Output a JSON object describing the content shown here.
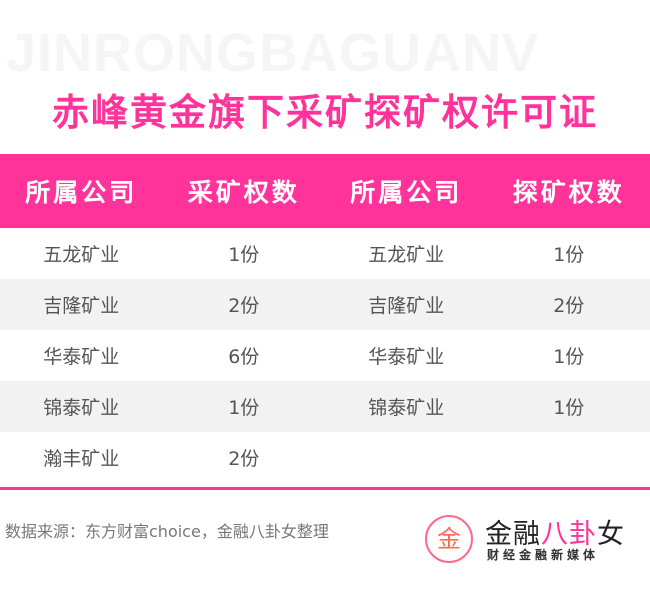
{
  "watermark": "JINRONGBAGUANV",
  "title": "赤峰黄金旗下采矿探矿权许可证",
  "table": {
    "headers": [
      "所属公司",
      "采矿权数",
      "所属公司",
      "探矿权数"
    ],
    "rows": [
      [
        "五龙矿业",
        "1份",
        "五龙矿业",
        "1份"
      ],
      [
        "吉隆矿业",
        "2份",
        "吉隆矿业",
        "2份"
      ],
      [
        "华泰矿业",
        "6份",
        "华泰矿业",
        "1份"
      ],
      [
        "锦泰矿业",
        "1份",
        "锦泰矿业",
        "1份"
      ],
      [
        "瀚丰矿业",
        "2份",
        "",
        ""
      ]
    ]
  },
  "footer": {
    "source": "数据来源：东方财富choice，金融八卦女整理",
    "logo": {
      "mark": "金八",
      "name_a": "金融",
      "name_b": "八卦",
      "name_c": "女",
      "tagline": "财经金融新媒体"
    }
  },
  "colors": {
    "accent": "#ff3399",
    "stripe": "#f2f2f2"
  }
}
